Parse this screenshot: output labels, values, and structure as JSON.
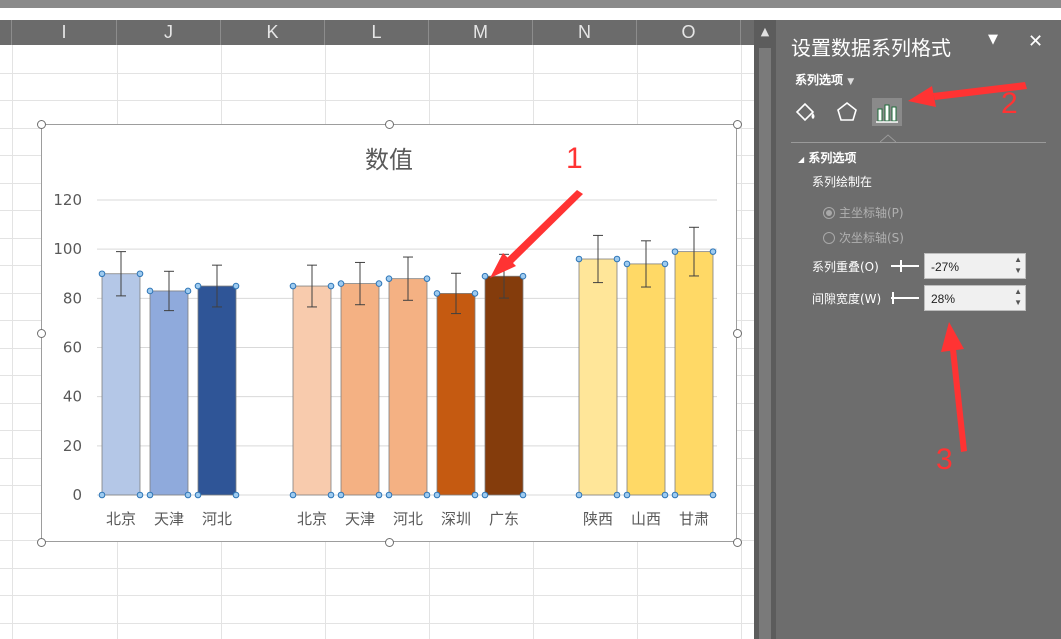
{
  "sheet": {
    "columns": [
      "I",
      "J",
      "K",
      "L",
      "M",
      "N",
      "O"
    ]
  },
  "chart_data": {
    "type": "bar",
    "title": "数值",
    "ylim": [
      0,
      120
    ],
    "yticks": [
      0,
      20,
      40,
      60,
      80,
      100,
      120
    ],
    "grid": true,
    "legend": "none",
    "error_bars": true,
    "groups": [
      {
        "categories": [
          "北京",
          "天津",
          "河北"
        ],
        "values": [
          90,
          83,
          85
        ],
        "errors": [
          9,
          8,
          8.5
        ],
        "colors": [
          "#b4c7e7",
          "#8faadc",
          "#2f5597"
        ]
      },
      {
        "categories": [
          "北京",
          "天津",
          "河北",
          "深圳",
          "广东"
        ],
        "values": [
          85,
          86,
          88,
          82,
          89
        ],
        "errors": [
          8.5,
          8.6,
          8.8,
          8.2,
          8.9
        ],
        "colors": [
          "#f8cbad",
          "#f4b183",
          "#f4b183",
          "#c55a11",
          "#843c0c"
        ]
      },
      {
        "categories": [
          "陕西",
          "山西",
          "甘肃"
        ],
        "values": [
          96,
          94,
          99
        ],
        "errors": [
          9.6,
          9.4,
          9.9
        ],
        "colors": [
          "#ffe699",
          "#ffd966",
          "#ffd966"
        ]
      }
    ]
  },
  "pane": {
    "title": "设置数据系列格式",
    "segment": "系列选项",
    "section": "系列选项",
    "plot_on_label": "系列绘制在",
    "primary_axis": "主坐标轴(P)",
    "secondary_axis": "次坐标轴(S)",
    "overlap_label": "系列重叠(O)",
    "overlap_value": "-27%",
    "gap_label": "间隙宽度(W)",
    "gap_value": "28%",
    "overlap_fraction": 0.365,
    "gap_fraction": 0.056
  },
  "annotations": [
    "1",
    "2",
    "3"
  ],
  "colors": {
    "annotation": "#ff3333",
    "pane_bg": "#6d6d6d"
  }
}
